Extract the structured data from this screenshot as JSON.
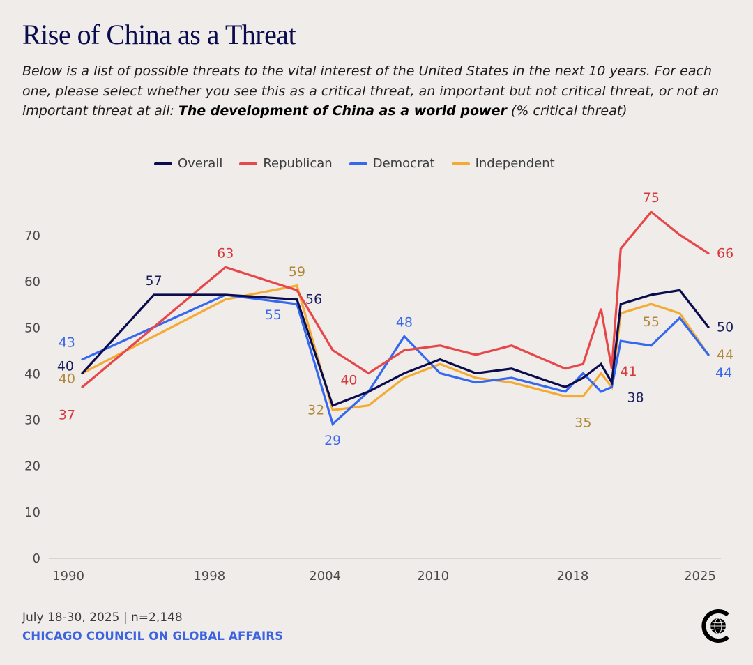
{
  "header": {
    "title": "Rise of China as a Threat",
    "subtitle_plain": "Below is a list of possible threats to the vital interest of the United States in the next 10 years. For each one, please select whether you see this as a critical threat, an important but not critical threat, or not an important threat at all: ",
    "subtitle_bold": "The development of China as a world power",
    "subtitle_tail": " (% critical threat)"
  },
  "footer": {
    "date_sample": "July 18-30, 2025 | n=2,148",
    "organization": "CHICAGO COUNCIL ON GLOBAL AFFAIRS",
    "logo_icon": "globe-c-logo-icon"
  },
  "chart_data": {
    "type": "line",
    "title": "Rise of China as a Threat",
    "xlabel": "",
    "ylabel": "% critical threat",
    "ylim": [
      0,
      70
    ],
    "yticks": [
      0,
      10,
      20,
      30,
      40,
      50,
      60,
      70
    ],
    "xlim": [
      1990,
      2025
    ],
    "xticks": [
      1990,
      1998,
      2004,
      2010,
      2018,
      2025
    ],
    "grid": false,
    "legend_position": "top-center",
    "x": [
      1990,
      1994,
      1998,
      2002,
      2004,
      2006,
      2008,
      2010,
      2012,
      2014,
      2017,
      2018,
      2019,
      2019.6,
      2020.1,
      2021.8,
      2023.4,
      2025
    ],
    "series": [
      {
        "name": "Overall",
        "color": "#0b0c4e",
        "label_color": "#1d1d5c",
        "values": [
          40,
          57,
          57,
          56,
          33,
          36,
          40,
          43,
          40,
          41,
          37,
          39,
          42,
          38,
          55,
          57,
          58,
          50
        ],
        "labels": [
          {
            "index": 0,
            "text": "40",
            "pos": "left"
          },
          {
            "index": 1,
            "text": "57",
            "pos": "above"
          },
          {
            "index": 3,
            "text": "56",
            "pos": "right"
          },
          {
            "index": 13,
            "text": "38",
            "pos": "below-right"
          },
          {
            "index": 17,
            "text": "50",
            "pos": "right"
          }
        ]
      },
      {
        "name": "Republican",
        "color": "#e8474a",
        "label_color": "#d6393c",
        "values": [
          37,
          null,
          63,
          58,
          45,
          40,
          45,
          46,
          44,
          46,
          41,
          42,
          54,
          41,
          67,
          75,
          70,
          66
        ],
        "labels": [
          {
            "index": 0,
            "text": "37",
            "pos": "below-left"
          },
          {
            "index": 2,
            "text": "63",
            "pos": "above"
          },
          {
            "index": 5,
            "text": "40",
            "pos": "left"
          },
          {
            "index": 13,
            "text": "41",
            "pos": "right"
          },
          {
            "index": 15,
            "text": "75",
            "pos": "above"
          },
          {
            "index": 17,
            "text": "66",
            "pos": "right"
          }
        ]
      },
      {
        "name": "Democrat",
        "color": "#3568f0",
        "label_color": "#3b68ea",
        "values": [
          43,
          null,
          57,
          55,
          29,
          36,
          48,
          40,
          38,
          39,
          36,
          40,
          36,
          37,
          47,
          46,
          52,
          44
        ],
        "labels": [
          {
            "index": 0,
            "text": "43",
            "pos": "above-left"
          },
          {
            "index": 3,
            "text": "55",
            "pos": "below-left"
          },
          {
            "index": 4,
            "text": "29",
            "pos": "below"
          },
          {
            "index": 6,
            "text": "48",
            "pos": "above"
          },
          {
            "index": 17,
            "text": "44",
            "pos": "below-right"
          }
        ]
      },
      {
        "name": "Independent",
        "color": "#f4ab33",
        "label_color": "#b08838",
        "values": [
          40,
          null,
          56,
          59,
          32,
          33,
          39,
          42,
          39,
          38,
          35,
          35,
          40,
          37,
          53,
          55,
          53,
          44
        ],
        "labels": [
          {
            "index": 0,
            "text": "40",
            "pos": "below-left"
          },
          {
            "index": 3,
            "text": "59",
            "pos": "above"
          },
          {
            "index": 4,
            "text": "32",
            "pos": "left"
          },
          {
            "index": 11,
            "text": "35",
            "pos": "below"
          },
          {
            "index": 15,
            "text": "55",
            "pos": "below"
          },
          {
            "index": 17,
            "text": "44",
            "pos": "right"
          }
        ]
      }
    ]
  }
}
